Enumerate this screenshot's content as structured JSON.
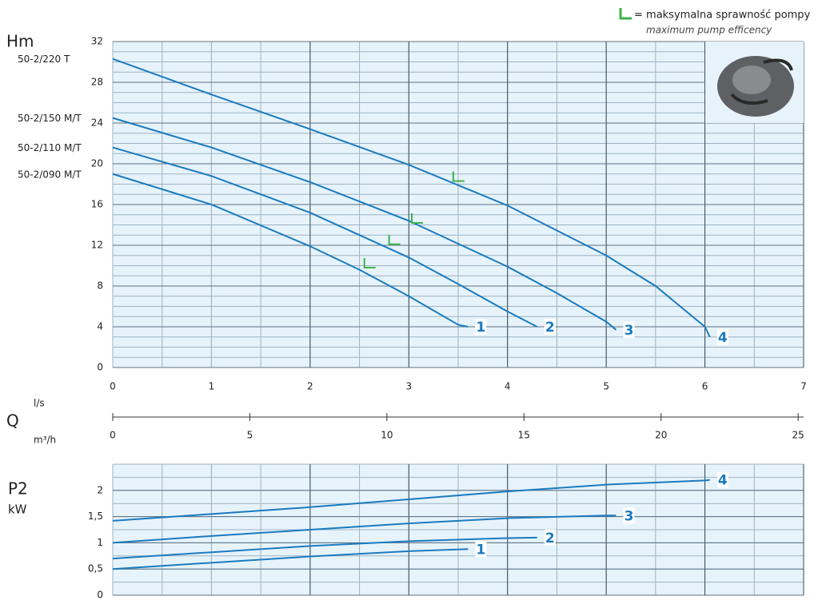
{
  "chart_data": [
    {
      "type": "line",
      "ylabel": "Hm",
      "xlabel": "Q",
      "xunit": "l/s",
      "x2unit": "m³/h",
      "legend_text": "= maksymalna sprawność pompy",
      "legend_subtext": "maximum pump efficency",
      "xlim": [
        0,
        7
      ],
      "xticks": [
        0,
        1,
        2,
        3,
        4,
        5,
        6,
        7
      ],
      "x2lim": [
        0,
        25.2
      ],
      "x2ticks": [
        0,
        5,
        10,
        15,
        20,
        25
      ],
      "ylim": [
        0,
        32
      ],
      "yticks": [
        0,
        4,
        8,
        12,
        16,
        20,
        24,
        28,
        32
      ],
      "grid": true,
      "grid_minor": {
        "x": 0.5,
        "y": 1
      },
      "series": [
        {
          "name": "50-2/220 T",
          "label": "4",
          "color": "#1a7bbf",
          "x": [
            0,
            1,
            2,
            3,
            4,
            5,
            5.5,
            6,
            6.05
          ],
          "values": [
            30.3,
            26.8,
            23.4,
            19.9,
            15.9,
            11.0,
            8.0,
            4.0,
            3.0
          ],
          "bep_x": 3.45,
          "bep_y": 18.3
        },
        {
          "name": "50-2/150 M/T",
          "label": "3",
          "color": "#1a7bbf",
          "x": [
            0,
            1,
            2,
            3,
            4,
            4.5,
            5,
            5.1
          ],
          "values": [
            24.5,
            21.6,
            18.2,
            14.4,
            9.9,
            7.3,
            4.5,
            3.7
          ],
          "bep_x": 3.03,
          "bep_y": 14.2
        },
        {
          "name": "50-2/110 M/T",
          "label": "2",
          "color": "#1a7bbf",
          "x": [
            0,
            1,
            2,
            3,
            3.5,
            4,
            4.3
          ],
          "values": [
            21.6,
            18.8,
            15.2,
            10.8,
            8.2,
            5.5,
            4.0
          ],
          "bep_x": 2.8,
          "bep_y": 12.1
        },
        {
          "name": "50-2/090 M/T",
          "label": "1",
          "color": "#1a7bbf",
          "x": [
            0,
            1,
            2,
            2.5,
            3,
            3.5,
            3.6
          ],
          "values": [
            19.0,
            16.0,
            11.9,
            9.6,
            7.0,
            4.2,
            4.0
          ],
          "bep_x": 2.55,
          "bep_y": 9.8
        }
      ]
    },
    {
      "type": "line",
      "ylabel": "P2",
      "yunit": "kW",
      "xlim": [
        0,
        7
      ],
      "xticks": [
        0,
        1,
        2,
        3,
        4,
        5,
        6,
        7
      ],
      "ylim": [
        0,
        2.5
      ],
      "yticks": [
        0,
        {
          "value": 0.5,
          "label": "0,5"
        },
        1,
        {
          "value": 1.5,
          "label": "1,5"
        },
        2
      ],
      "grid": true,
      "grid_minor": {
        "x": 0.5,
        "y": 0.25
      },
      "series": [
        {
          "label": "4",
          "color": "#1a7bbf",
          "x": [
            0,
            1,
            2,
            3,
            4,
            5,
            6,
            6.05
          ],
          "values": [
            1.42,
            1.55,
            1.68,
            1.83,
            1.98,
            2.11,
            2.19,
            2.2
          ]
        },
        {
          "label": "3",
          "color": "#1a7bbf",
          "x": [
            0,
            1,
            2,
            3,
            4,
            5,
            5.1
          ],
          "values": [
            1.0,
            1.13,
            1.25,
            1.37,
            1.47,
            1.52,
            1.52
          ]
        },
        {
          "label": "2",
          "color": "#1a7bbf",
          "x": [
            0,
            1,
            2,
            3,
            4,
            4.3
          ],
          "values": [
            0.7,
            0.82,
            0.94,
            1.03,
            1.09,
            1.1
          ]
        },
        {
          "label": "1",
          "color": "#1a7bbf",
          "x": [
            0,
            1,
            2,
            3,
            3.6
          ],
          "values": [
            0.5,
            0.62,
            0.74,
            0.84,
            0.88
          ]
        }
      ]
    }
  ]
}
